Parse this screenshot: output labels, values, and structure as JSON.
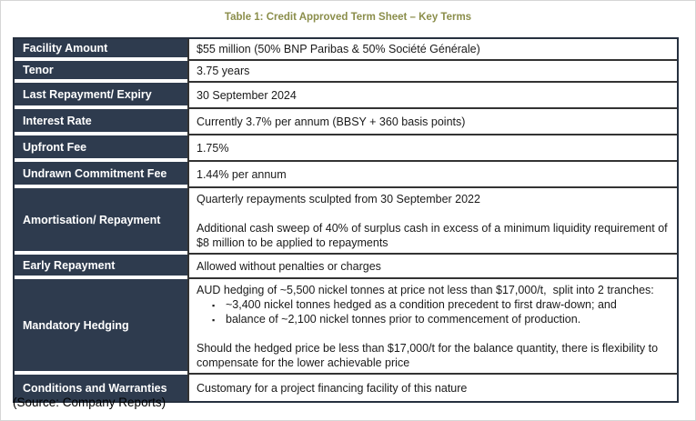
{
  "title": "Table 1: Credit Approved Term Sheet – Key Terms",
  "source_note": "(Source: Company Reports)",
  "colors": {
    "header_bg": "#2E3B4E",
    "title_text": "#8B8E4B",
    "grid_line": "#333333",
    "outer_border": "#26303F",
    "label_text": "#FFFFFF",
    "value_text": "#1A1A1A"
  },
  "table": {
    "rows": [
      {
        "label": "Facility Amount",
        "value": "$55 million (50% BNP Paribas & 50% Société Générale)"
      },
      {
        "label": "Tenor",
        "value": "3.75 years"
      },
      {
        "label": "Last Repayment/ Expiry",
        "value": "30 September 2024"
      },
      {
        "label": "Interest Rate",
        "value": "Currently 3.7% per annum (BBSY + 360 basis points)"
      },
      {
        "label": "Upfront Fee",
        "value": "1.75%"
      },
      {
        "label": "Undrawn Commitment Fee",
        "value": "1.44% per annum"
      },
      {
        "label": "Amortisation/ Repayment",
        "paragraphs": [
          "Quarterly repayments sculpted from 30 September 2022",
          "Additional cash sweep of 40% of surplus cash in excess of a minimum liquidity requirement of $8 million to be applied to repayments"
        ]
      },
      {
        "label": "Early Repayment",
        "value": "Allowed without penalties or charges"
      },
      {
        "label": "Mandatory Hedging",
        "intro": "AUD hedging of ~5,500 nickel tonnes at price not less than $17,000/t,  split into 2 tranches:",
        "bullets": [
          "~3,400 nickel tonnes hedged as a condition precedent to first draw-down; and",
          "balance of ~2,100 nickel tonnes prior to commencement of production."
        ],
        "footer": "Should the hedged price be less than $17,000/t for the balance quantity, there is flexibility to compensate for the lower achievable price"
      },
      {
        "label": "Conditions and Warranties",
        "value": "Customary for a project financing facility of this nature"
      }
    ]
  }
}
